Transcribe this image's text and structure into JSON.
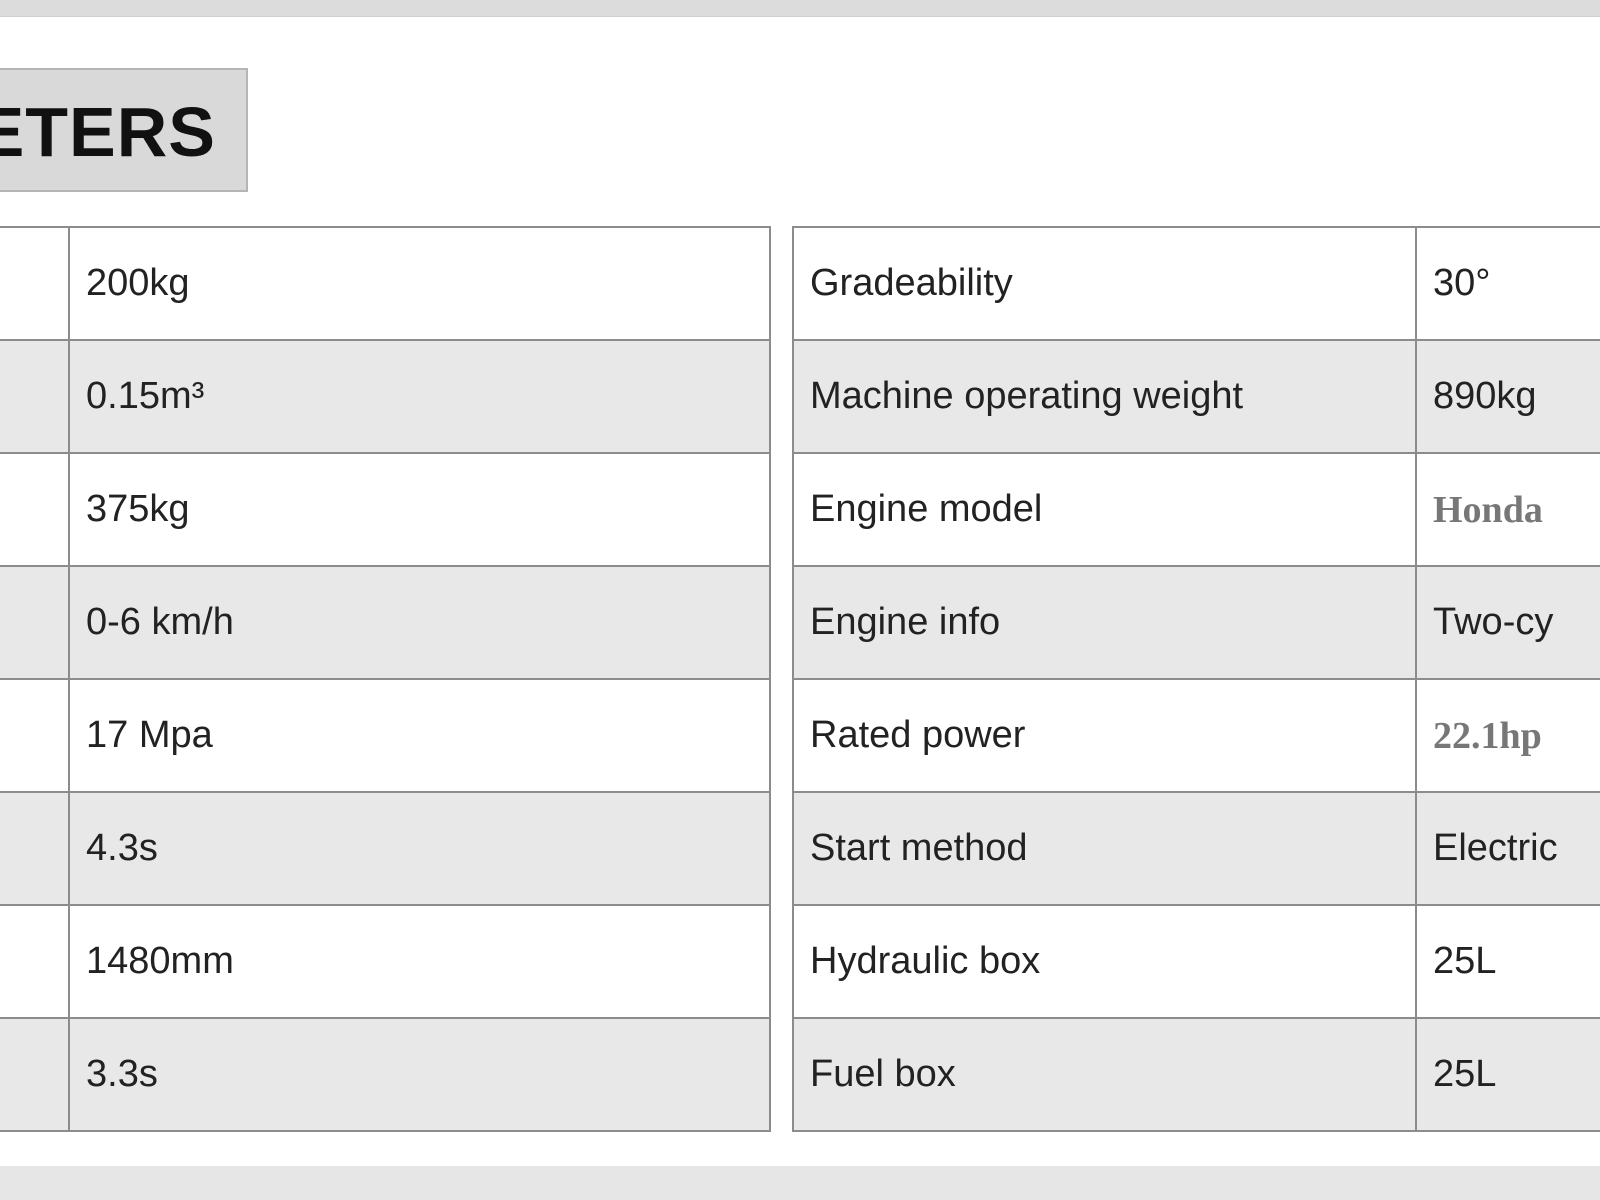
{
  "header": {
    "title": "ETERS"
  },
  "left_table": {
    "rows": [
      {
        "label": "",
        "value": "200kg"
      },
      {
        "label": "",
        "value": "0.15m³"
      },
      {
        "label": "",
        "value": "375kg"
      },
      {
        "label": "",
        "value": "0-6 km/h"
      },
      {
        "label": "",
        "value": "17 Mpa"
      },
      {
        "label": "",
        "value": "4.3s"
      },
      {
        "label": "",
        "value": "1480mm"
      },
      {
        "label": "",
        "value": "3.3s"
      }
    ]
  },
  "right_table": {
    "rows": [
      {
        "label": "Gradeability",
        "value": "30°"
      },
      {
        "label": "Machine operating weight",
        "value": "890kg"
      },
      {
        "label": "Engine model",
        "value": "Honda"
      },
      {
        "label": "Engine info",
        "value": "Two-cy"
      },
      {
        "label": "Rated power",
        "value": "22.1hp"
      },
      {
        "label": "Start method",
        "value": "Electric"
      },
      {
        "label": "Hydraulic box",
        "value": "25L"
      },
      {
        "label": "Fuel box",
        "value": "25L"
      }
    ]
  }
}
